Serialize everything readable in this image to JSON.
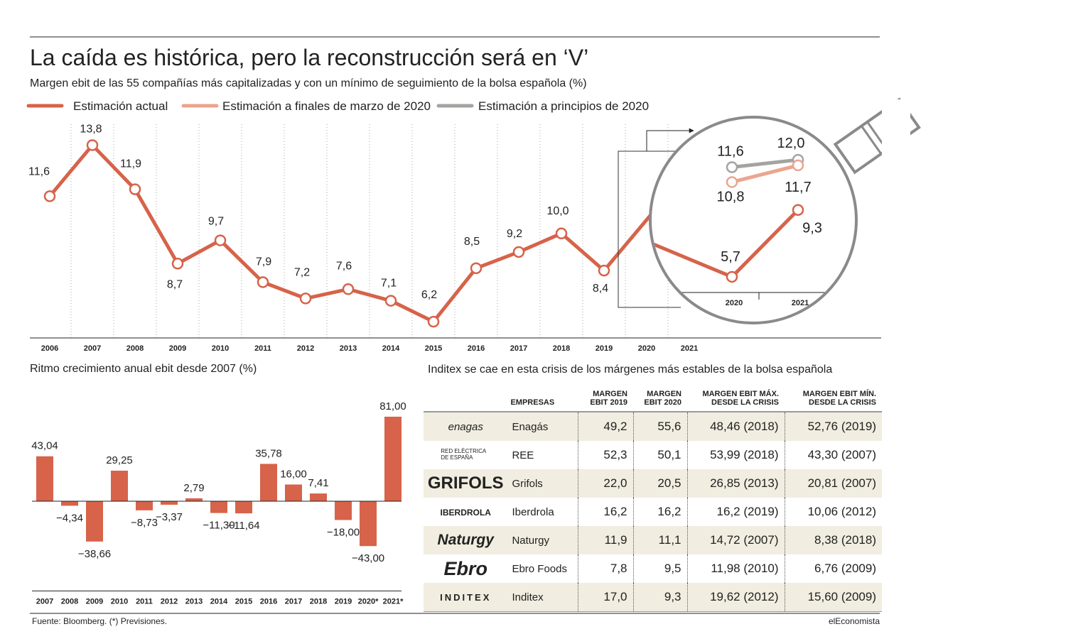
{
  "header": {
    "title": "La caída es histórica, pero la reconstrucción será en ‘V’",
    "subtitle": "Margen ebit de las 55 compañías más capitalizadas y con un mínimo de seguimiento de la bolsa española (%)"
  },
  "chart_data": [
    {
      "type": "line",
      "categories": [
        "2006",
        "2007",
        "2008",
        "2009",
        "2010",
        "2011",
        "2012",
        "2013",
        "2014",
        "2015",
        "2016",
        "2017",
        "2018",
        "2019",
        "2020",
        "2021"
      ],
      "series": [
        {
          "name": "Estimación actual",
          "color": "#d6634a",
          "values": [
            11.6,
            13.8,
            11.9,
            8.7,
            9.7,
            7.9,
            7.2,
            7.6,
            7.1,
            6.2,
            8.5,
            9.2,
            10.0,
            8.4,
            5.7,
            9.3
          ],
          "value_labels": [
            "11,6",
            "13,8",
            "11,9",
            "8,7",
            "9,7",
            "7,9",
            "7,2",
            "7,6",
            "7,1",
            "6,2",
            "8,5",
            "9,2",
            "10,0",
            "8,4",
            "5,7",
            "9,3"
          ]
        },
        {
          "name": "Estimación a finales de marzo de 2020",
          "color": "#eba58f",
          "values": [
            null,
            null,
            null,
            null,
            null,
            null,
            null,
            null,
            null,
            null,
            null,
            null,
            null,
            null,
            10.8,
            11.7
          ],
          "value_labels": [
            null,
            null,
            null,
            null,
            null,
            null,
            null,
            null,
            null,
            null,
            null,
            null,
            null,
            null,
            "10,8",
            "11,7"
          ]
        },
        {
          "name": "Estimación a principios de 2020",
          "color": "#a3a3a0",
          "values": [
            null,
            null,
            null,
            null,
            null,
            null,
            null,
            null,
            null,
            null,
            null,
            null,
            null,
            null,
            11.6,
            12.0
          ],
          "value_labels": [
            null,
            null,
            null,
            null,
            null,
            null,
            null,
            null,
            null,
            null,
            null,
            null,
            null,
            null,
            "11,6",
            "12,0"
          ]
        }
      ],
      "ylim": [
        5.5,
        14.7
      ],
      "grid": true
    },
    {
      "type": "bar",
      "title": "Ritmo crecimiento anual ebit desde 2007 (%)",
      "categories": [
        "2007",
        "2008",
        "2009",
        "2010",
        "2011",
        "2012",
        "2013",
        "2014",
        "2015",
        "2016",
        "2017",
        "2018",
        "2019",
        "2020*",
        "2021*"
      ],
      "values": [
        43.04,
        -4.34,
        -38.66,
        29.25,
        -8.73,
        -3.37,
        2.79,
        -11.3,
        -11.64,
        35.78,
        16.0,
        7.41,
        -18.0,
        -43.0,
        81.0
      ],
      "value_labels": [
        "43,04",
        "−4,34",
        "−38,66",
        "29,25",
        "−8,73",
        "−3,37",
        "2,79",
        "−11,30",
        "−11,64",
        "35,78",
        "16,00",
        "7,41",
        "−18,00",
        "−43,00",
        "81,00"
      ],
      "color": "#d6634a",
      "ylim": [
        -86,
        99
      ]
    }
  ],
  "table": {
    "title": "Inditex se cae en esta crisis de los márgenes más estables de la bolsa española",
    "columns": [
      "EMPRESAS",
      "MARGEN EBIT 2019",
      "MARGEN EBIT 2020",
      "MARGEN EBIT MÁX. DESDE LA CRISIS",
      "MARGEN EBIT MÍN. DESDE LA CRISIS"
    ],
    "rows": [
      [
        "enagas",
        "Enagás",
        "49,2",
        "55,6",
        "48,46 (2018)",
        "52,76 (2019)"
      ],
      [
        "RED ELÉCTRICA DE ESPAÑA",
        "REE",
        "52,3",
        "50,1",
        "53,99 (2018)",
        "43,30 (2007)"
      ],
      [
        "GRIFOLS",
        "Grifols",
        "22,0",
        "20,5",
        "26,85 (2013)",
        "20,81 (2007)"
      ],
      [
        "IBERDROLA",
        "Iberdrola",
        "16,2",
        "16,2",
        "16,2 (2019)",
        "10,06 (2012)"
      ],
      [
        "Naturgy",
        "Naturgy",
        "11,9",
        "11,1",
        "14,72 (2007)",
        "8,38 (2018)"
      ],
      [
        "Ebro",
        "Ebro Foods",
        "7,8",
        "9,5",
        "11,98 (2010)",
        "6,76 (2009)"
      ],
      [
        "INDITEX",
        "Inditex",
        "17,0",
        "9,3",
        "19,62 (2012)",
        "15,60 (2009)"
      ]
    ]
  },
  "footer": {
    "source": "Fuente: Bloomberg. (*) Previsiones.",
    "brand": "elEconomista"
  }
}
